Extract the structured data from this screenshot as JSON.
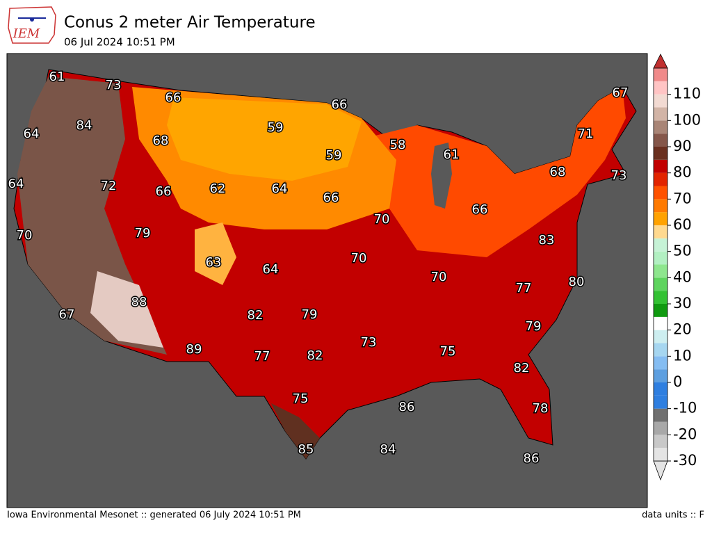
{
  "logo": "IEM",
  "title": "Conus 2 meter Air Temperature",
  "subtitle": "06 Jul 2024 10:51 PM",
  "footer_left": "Iowa Environmental Mesonet :: generated 06 July 2024 10:51 PM",
  "footer_right": "data units :: F",
  "stations": [
    61,
    73,
    66,
    66,
    67,
    84,
    64,
    59,
    58,
    61,
    71,
    68,
    59,
    72,
    64,
    62,
    64,
    66,
    66,
    68,
    73,
    70,
    79,
    70,
    66,
    63,
    64,
    70,
    83,
    70,
    80,
    77,
    67,
    88,
    82,
    79,
    79,
    73,
    75,
    89,
    77,
    82,
    82,
    75,
    86,
    78,
    85,
    84,
    86
  ],
  "colorbar": {
    "range": [
      -30,
      120
    ],
    "ticks": [
      -30,
      -20,
      -10,
      0,
      10,
      20,
      30,
      40,
      50,
      60,
      70,
      80,
      90,
      100,
      110
    ],
    "colors": [
      "#e4e4e4",
      "#c8c8c8",
      "#a8a8a8",
      "#707070",
      "#2f7fe0",
      "#2f7fe0",
      "#5d9fe0",
      "#85bdf2",
      "#a6d6f0",
      "#cdeef0",
      "#ffffff",
      "#109a10",
      "#33c233",
      "#5ed45e",
      "#8ee68e",
      "#b2f0c2",
      "#c6f2d6",
      "#ffd98f",
      "#ffa200",
      "#ff7a00",
      "#ff5200",
      "#e22400",
      "#c20000",
      "#6a3020",
      "#85574a",
      "#a98576",
      "#d2b4a6",
      "#f2dad2",
      "#ffc4c4",
      "#f08a8a"
    ]
  }
}
